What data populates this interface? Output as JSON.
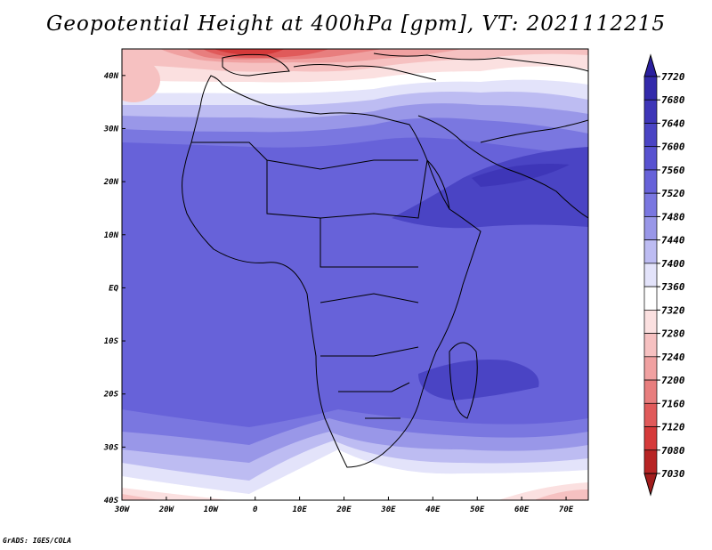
{
  "title": "Geopotential Height at 400hPa [gpm], VT: 2021112215",
  "credit": "GrADS: IGES/COLA",
  "map": {
    "lon_range": [
      -30,
      75
    ],
    "lat_range": [
      -40,
      45
    ],
    "lat_labels": [
      "40N",
      "30N",
      "20N",
      "10N",
      "EQ",
      "10S",
      "20S",
      "30S",
      "40S"
    ],
    "lat_values": [
      40,
      30,
      20,
      10,
      0,
      -10,
      -20,
      -30,
      -40
    ],
    "lon_labels": [
      "30W",
      "20W",
      "10W",
      "0",
      "10E",
      "20E",
      "30E",
      "40E",
      "50E",
      "60E",
      "70E"
    ],
    "lon_values": [
      -30,
      -20,
      -10,
      0,
      10,
      20,
      30,
      40,
      50,
      60,
      70
    ]
  },
  "colorbar": {
    "labels": [
      "7720",
      "7680",
      "7640",
      "7600",
      "7560",
      "7520",
      "7480",
      "7440",
      "7400",
      "7360",
      "7320",
      "7280",
      "7240",
      "7200",
      "7160",
      "7120",
      "7080",
      "7030"
    ],
    "colors": [
      "#2a1f9e",
      "#332aab",
      "#3e36b8",
      "#4a44c4",
      "#5852d0",
      "#6762d9",
      "#7a77e0",
      "#9997e8",
      "#bdbcf2",
      "#e3e3fa",
      "#ffffff",
      "#fbe0e0",
      "#f6c1c1",
      "#f0a1a1",
      "#e87e7e",
      "#e05a5a",
      "#d53a3a",
      "#b72424",
      "#a11c1c"
    ]
  }
}
